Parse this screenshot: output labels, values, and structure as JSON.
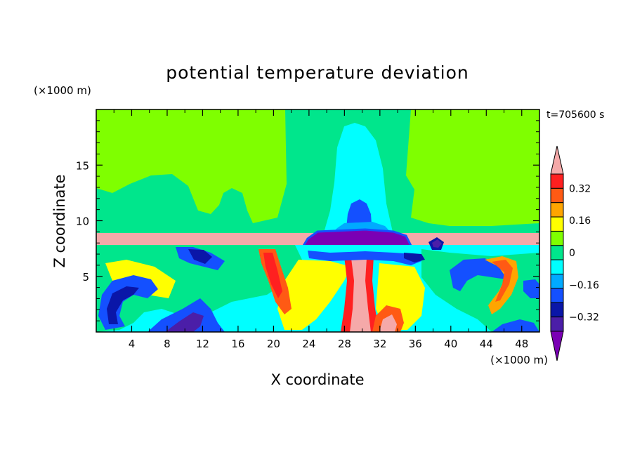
{
  "chart_data": {
    "type": "heatmap",
    "title": "potential temperature deviation",
    "xlabel": "X coordinate",
    "ylabel": "Z coordinate",
    "x_unit": "(×1000 m)",
    "y_unit": "(×1000 m)",
    "time_label": "t=705600 s",
    "xlim": [
      0,
      50
    ],
    "ylim": [
      0,
      20
    ],
    "x_ticks": [
      4,
      8,
      12,
      16,
      20,
      24,
      28,
      32,
      36,
      40,
      44,
      48
    ],
    "y_ticks": [
      5,
      10,
      15
    ],
    "colorbar": {
      "levels": [
        -0.4,
        -0.32,
        -0.24,
        -0.16,
        -0.08,
        0,
        0.08,
        0.16,
        0.24,
        0.32,
        0.4
      ],
      "colors": [
        "#7a00b4",
        "#4b1ea8",
        "#0a16a8",
        "#1450ff",
        "#00aaff",
        "#00ffff",
        "#00e68c",
        "#7fff00",
        "#ffff00",
        "#ffa500",
        "#ff5a14",
        "#ff2020",
        "#f5a9a9"
      ],
      "tick_labels": [
        "0.32",
        "0.16",
        "0",
        "−0.16",
        "−0.32"
      ],
      "tick_values": [
        0.32,
        0.16,
        0,
        -0.16,
        -0.32
      ]
    },
    "background_value": 0.04,
    "features": [
      {
        "name": "upper-green-layer",
        "x": [
          0,
          50
        ],
        "z": [
          11.5,
          20
        ],
        "value": 0.05
      },
      {
        "name": "lower-green-layer",
        "x": [
          0,
          50
        ],
        "z": [
          9,
          11.8
        ],
        "value": 0.0
      },
      {
        "name": "inversion-band",
        "x": [
          0,
          50
        ],
        "z": [
          7.8,
          9.0
        ],
        "value": 0.42
      },
      {
        "name": "central-plume-cyan",
        "x": [
          25,
          35
        ],
        "z": [
          9,
          18.5
        ],
        "value": -0.06
      },
      {
        "name": "central-plume-blue",
        "x": [
          28,
          31
        ],
        "z": [
          9,
          12
        ],
        "value": -0.2
      },
      {
        "name": "central-cap-purple",
        "x": [
          23.5,
          35.5
        ],
        "z": [
          7.5,
          9.3
        ],
        "value": -0.42
      },
      {
        "name": "central-column-pink",
        "x": [
          29,
          31
        ],
        "z": [
          0,
          7.5
        ],
        "value": 0.42
      },
      {
        "name": "left-vortex-blue",
        "x": [
          1,
          6
        ],
        "z": [
          0.5,
          5
        ],
        "value": -0.24
      },
      {
        "name": "mid-eddy-red",
        "x": [
          18,
          21
        ],
        "z": [
          1,
          6
        ],
        "value": 0.34
      },
      {
        "name": "right-eddy-red",
        "x": [
          40,
          46
        ],
        "z": [
          2,
          6
        ],
        "value": 0.32
      }
    ]
  }
}
